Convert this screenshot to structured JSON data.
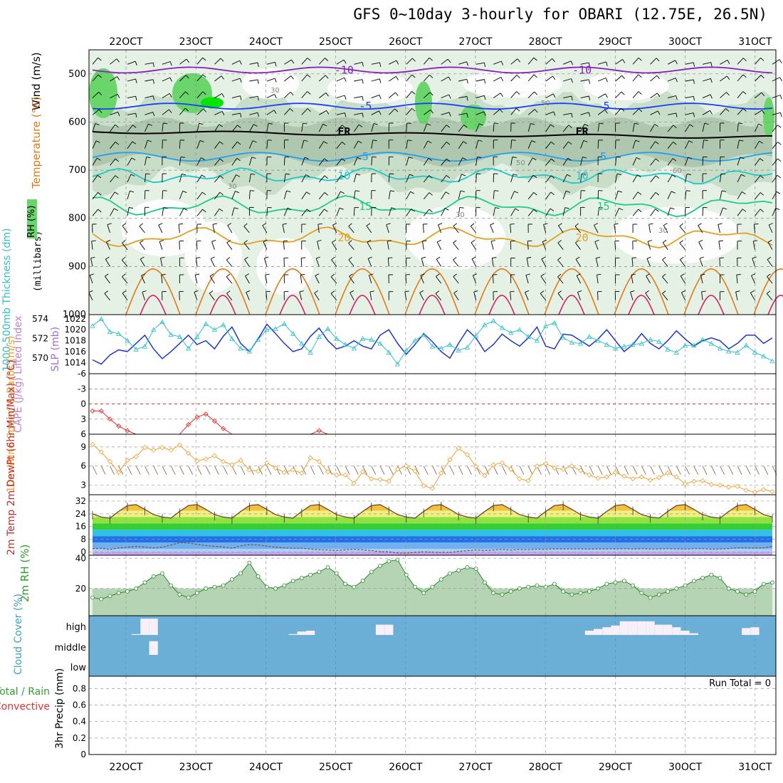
{
  "title": "GFS 0~10day 3-hourly for OBARI (12.75E, 26.5N)",
  "x_ticks": [
    "22OCT",
    "23OCT",
    "24OCT",
    "25OCT",
    "26OCT",
    "27OCT",
    "28OCT",
    "29OCT",
    "30OCT",
    "31OCT"
  ],
  "run_total": "Run Total = 0",
  "colors": {
    "rh_light": "#e6f1e6",
    "rh_mid": "#c4dcc4",
    "rh_dark": "#a9c3a9",
    "rh_green": "#6ad56a",
    "rh_bright": "#00e600",
    "purple": "#8a1fbe",
    "blue": "#1a3cff",
    "sky": "#1fa0f0",
    "teal": "#1ec8c8",
    "seagreen": "#1ecb8a",
    "orange": "#e0a020",
    "darkorange": "#e07a18",
    "magenta": "#d4206a",
    "slp": "#2038c8",
    "thick": "#30c0c8",
    "li": "#e03030",
    "wind10": "#f0a030",
    "cloud": "#6baed6",
    "cloud_white": "#f8f0f8"
  },
  "chart_data": [
    {
      "id": "cross_section",
      "type": "heatmap",
      "ylabel_lines": [
        "Wind (m/s)",
        "Temperature (°C)",
        "RH (%)"
      ],
      "yaxis_label": "(millibars)",
      "y_ticks": [
        "500",
        "600",
        "700",
        "800",
        "900",
        "1000"
      ],
      "ylim": [
        450,
        1000
      ],
      "isotherms": [
        {
          "label": "-10",
          "pressure": 492
        },
        {
          "label": "-5",
          "pressure": 567
        },
        {
          "label": "FR",
          "pressure": 620
        },
        {
          "label": "5",
          "pressure": 672
        },
        {
          "label": "10",
          "pressure": 712
        },
        {
          "label": "15",
          "pressure": 775
        },
        {
          "label": "20",
          "pressure": 840
        }
      ],
      "rh_labels": [
        "30",
        "50",
        "60"
      ]
    },
    {
      "id": "slp_thickness",
      "type": "line",
      "ylabel_left": "1000-500mb Thickness (dm)",
      "ylabel_right": "SLP (mb)",
      "y_ticks_left": [
        "570",
        "572",
        "574"
      ],
      "y_ticks_right": [
        "1014",
        "1016",
        "1018",
        "1020",
        "1022"
      ],
      "series": [
        {
          "name": "SLP (mb)",
          "values": [
            1014.5,
            1013.7,
            1015.4,
            1016.3,
            1016.0,
            1017.5,
            1019.0,
            1016.5,
            1014.7,
            1016.0,
            1017.5,
            1019.0,
            1017.3,
            1018.0,
            1016.5,
            1018.8,
            1020.5,
            1017.5,
            1016.0,
            1018.3,
            1021.0,
            1019.3,
            1017.5,
            1016.0,
            1016.5,
            1018.8,
            1020.3,
            1018.0,
            1016.5,
            1017.0,
            1018.0,
            1017.0,
            1016.5,
            1019.0,
            1020.0,
            1017.5,
            1015.5,
            1017.3,
            1019.3,
            1017.8,
            1016.0,
            1014.8,
            1017.5,
            1020.0,
            1018.5,
            1016.0,
            1017.3,
            1019.2,
            1018.0,
            1017.0,
            1018.5,
            1020.5,
            1017.0,
            1016.5,
            1019.2,
            1019.0,
            1018.0,
            1017.0,
            1018.3,
            1020.0,
            1018.0,
            1016.0,
            1017.3,
            1019.3,
            1017.5,
            1016.5,
            1018.0,
            1019.8,
            1018.3,
            1017.0,
            1018.0,
            1018.5,
            1018.0,
            1016.5,
            1017.5,
            1019.0,
            1019.0,
            1017.5,
            1018.5
          ]
        },
        {
          "name": "Thickness (dm)",
          "values": [
            573.3,
            574.0,
            572.7,
            572.5,
            571.8,
            570.9,
            571.2,
            572.9,
            573.7,
            572.4,
            572.2,
            571.0,
            572.2,
            573.5,
            572.9,
            573.4,
            572.0,
            571.0,
            570.7,
            571.9,
            572.9,
            573.0,
            573.5,
            572.5,
            571.5,
            570.6,
            572.2,
            573.0,
            572.0,
            571.4,
            571.0,
            572.0,
            571.9,
            571.5,
            570.6,
            569.4,
            570.8,
            571.8,
            572.4,
            571.2,
            571.0,
            571.4,
            570.8,
            571.1,
            572.3,
            573.4,
            573.8,
            573.1,
            572.6,
            572.9,
            572.2,
            571.8,
            573.3,
            573.6,
            572.1,
            571.6,
            571.5,
            572.2,
            571.8,
            571.4,
            571.0,
            571.2,
            571.4,
            571.5,
            571.9,
            571.7,
            570.9,
            570.6,
            571.3,
            571.3,
            571.9,
            571.5,
            571.0,
            570.7,
            570.6,
            571.3,
            570.6,
            570.2,
            569.7
          ]
        }
      ]
    },
    {
      "id": "cape_li",
      "type": "line",
      "ylabel": "CAPE (J/kg) Lifted Index",
      "y_ticks": [
        "-6",
        "-3",
        "0",
        "3",
        "6"
      ],
      "ylim": [
        -6,
        6
      ],
      "series": [
        {
          "name": "Lifted Index",
          "values": [
            1.4,
            1.4,
            3.0,
            4.4,
            5.3,
            6.0,
            6.0,
            6.0,
            6.0,
            6.0,
            6.0,
            4.1,
            2.6,
            2.0,
            3.4,
            4.9,
            6.0,
            6.0,
            6.0,
            6.0,
            6.0,
            6.0,
            6.0,
            6.0,
            6.0,
            6.0,
            5.3,
            6.0,
            6.0,
            6.0,
            6.0,
            6.0,
            6.0,
            6.0,
            6.0,
            6.0,
            6.0,
            6.0,
            6.0,
            6.0,
            6.0,
            6.0,
            6.0,
            6.0,
            6.0,
            6.0,
            6.0,
            6.0,
            6.0,
            6.0,
            6.0,
            6.0,
            6.0,
            6.0,
            6.0,
            6.0,
            6.0,
            6.0,
            6.0,
            6.0,
            6.0,
            6.0,
            6.0,
            6.0,
            6.0,
            6.0,
            6.0,
            6.0,
            6.0,
            6.0,
            6.0,
            6.0,
            6.0,
            6.0,
            6.0,
            6.0,
            6.0,
            6.0,
            6.0
          ]
        }
      ]
    },
    {
      "id": "wind10m",
      "type": "line",
      "ylabel": "10m Wind Speed & Barbs (m/s)",
      "y_ticks": [
        "3",
        "6",
        "9"
      ],
      "ylim": [
        1.5,
        11
      ],
      "series": [
        {
          "name": "Speed (m/s)",
          "values": [
            9.4,
            8.2,
            6.7,
            5.0,
            6.9,
            7.5,
            8.9,
            8.5,
            8.9,
            8.5,
            9.3,
            8.0,
            6.8,
            7.1,
            7.6,
            6.7,
            6.2,
            6.9,
            5.4,
            5.2,
            6.5,
            5.7,
            5.0,
            5.4,
            4.9,
            7.3,
            6.7,
            5.1,
            4.6,
            4.6,
            3.3,
            5.1,
            4.0,
            3.9,
            3.6,
            5.5,
            6.0,
            5.2,
            2.9,
            2.5,
            4.9,
            7.0,
            8.8,
            7.8,
            5.9,
            4.5,
            6.2,
            6.5,
            5.5,
            4.0,
            3.7,
            6.0,
            6.4,
            5.7,
            5.5,
            6.0,
            5.3,
            4.6,
            4.1,
            4.3,
            5.0,
            4.4,
            4.0,
            4.3,
            3.8,
            4.2,
            4.9,
            4.3,
            3.2,
            3.6,
            3.7,
            3.1,
            3.0,
            2.7,
            2.8,
            2.2,
            1.9,
            2.3,
            2.0
          ]
        }
      ]
    },
    {
      "id": "temp2m",
      "type": "area",
      "ylabel": "2m Temp 2m DewPt (6hr Min/Max) (°C)",
      "y_ticks": [
        "0",
        "8",
        "16",
        "24",
        "32"
      ],
      "ylim": [
        -2,
        36
      ],
      "series": [
        {
          "name": "2m Temp (°C)",
          "values": [
            24.0,
            22.0,
            21.3,
            25.5,
            29.2,
            29.8,
            26.8,
            23.5,
            22.0,
            21.3,
            25.5,
            29.2,
            29.8,
            26.8,
            23.5,
            22.0,
            21.3,
            25.5,
            29.2,
            29.8,
            26.8,
            23.5,
            22.0,
            21.3,
            25.5,
            29.2,
            29.8,
            26.8,
            23.5,
            22.0,
            21.3,
            25.5,
            29.2,
            29.8,
            26.8,
            23.5,
            22.0,
            21.3,
            25.5,
            29.2,
            29.8,
            26.8,
            23.5,
            22.0,
            21.3,
            25.5,
            29.2,
            29.8,
            26.8,
            23.5,
            22.0,
            21.3,
            25.5,
            29.2,
            29.8,
            26.8,
            23.5,
            22.0,
            21.3,
            25.5,
            29.2,
            29.8,
            26.8,
            23.5,
            22.0,
            21.3,
            25.5,
            29.2,
            29.8,
            26.8,
            23.5,
            22.0,
            21.3,
            25.5,
            29.2,
            29.8,
            26.8,
            23.5,
            22.0
          ]
        },
        {
          "name": "2m DewPt (°C)",
          "values": [
            2.2,
            2.3,
            1.6,
            2.5,
            3.0,
            3.4,
            3.1,
            2.6,
            3.0,
            4.4,
            5.9,
            5.6,
            4.8,
            4.1,
            3.6,
            3.2,
            2.4,
            3.9,
            4.7,
            4.5,
            3.7,
            3.1,
            2.6,
            2.4,
            2.4,
            1.9,
            1.5,
            1.3,
            1.0,
            1.4,
            1.7,
            1.4,
            0.9,
            0.2,
            0.1,
            -0.6,
            -0.7,
            -0.2,
            0.1,
            -0.1,
            -0.3,
            -0.3,
            0.4,
            0.8,
            1.3,
            1.0,
            1.3,
            1.6,
            1.2,
            1.6,
            1.5,
            1.8,
            1.7,
            2.0,
            2.0,
            1.9,
            2.0,
            1.8,
            2.0,
            2.0,
            2.0,
            2.1,
            1.9,
            2.1,
            1.9,
            2.0,
            2.1,
            2.0,
            1.9,
            2.1,
            2.1,
            1.8,
            1.9,
            2.2,
            2.6,
            2.6,
            2.5,
            2.6,
            3.6
          ]
        }
      ]
    },
    {
      "id": "rh2m",
      "type": "area",
      "ylabel": "2m RH (%)",
      "y_ticks": [
        "20",
        "40"
      ],
      "ylim": [
        2,
        42
      ],
      "series": [
        {
          "name": "2m RH (%)",
          "values": [
            14,
            13,
            15,
            17,
            18,
            20,
            24,
            28,
            30,
            22,
            16,
            14,
            17,
            20,
            21,
            22,
            26,
            30,
            37,
            28,
            21,
            20,
            22,
            25,
            27,
            29,
            31,
            34,
            30,
            23,
            21,
            25,
            31,
            35,
            38,
            39,
            29,
            21,
            17,
            21,
            26,
            30,
            32,
            34,
            33,
            24,
            17,
            16,
            18,
            20,
            21,
            22,
            21,
            23,
            18,
            16,
            17,
            18,
            20,
            23,
            24,
            25,
            22,
            17,
            14,
            16,
            18,
            20,
            22,
            25,
            27,
            29,
            27,
            20,
            18,
            16,
            18,
            23,
            24,
            26,
            28,
            29
          ]
        }
      ]
    },
    {
      "id": "cloud",
      "type": "bar",
      "ylabel": "Cloud Cover (%)",
      "y_ticks": [
        "low",
        "middle",
        "high"
      ],
      "series": [
        {
          "name": "high",
          "values": [
            0,
            0,
            0,
            0,
            0,
            5,
            95,
            95,
            0,
            0,
            0,
            0,
            0,
            0,
            0,
            0,
            0,
            0,
            0,
            0,
            0,
            0,
            0,
            5,
            20,
            25,
            0,
            0,
            0,
            0,
            0,
            0,
            0,
            60,
            60,
            0,
            0,
            0,
            0,
            0,
            0,
            0,
            0,
            0,
            0,
            0,
            0,
            0,
            0,
            0,
            0,
            0,
            0,
            0,
            0,
            0,
            0,
            25,
            35,
            45,
            55,
            80,
            80,
            80,
            80,
            60,
            60,
            45,
            25,
            10,
            0,
            0,
            0,
            0,
            0,
            40,
            45,
            0,
            0,
            15,
            30,
            40,
            30,
            20,
            30,
            30,
            15,
            0,
            0
          ]
        },
        {
          "name": "middle",
          "values": [
            0,
            0,
            0,
            0,
            0,
            0,
            0,
            80,
            0,
            0,
            0,
            0,
            0,
            0,
            0,
            0,
            0,
            0,
            0,
            0,
            0,
            0,
            0,
            0,
            0,
            0,
            0,
            0,
            0,
            0,
            0,
            0,
            0,
            0,
            0,
            0,
            0,
            0,
            0,
            0,
            0,
            0,
            0,
            0,
            0,
            0,
            0,
            0,
            0,
            0,
            0,
            0,
            0,
            0,
            0,
            0,
            0,
            0,
            0,
            0,
            0,
            0,
            0,
            0,
            0,
            0,
            0,
            0,
            0,
            0,
            0,
            0,
            0,
            0,
            0,
            0,
            0,
            0,
            0
          ]
        },
        {
          "name": "low",
          "values": [
            0,
            0,
            0,
            0,
            0,
            0,
            0,
            0,
            0,
            0,
            0,
            0,
            0,
            0,
            0,
            0,
            0,
            0,
            0,
            0,
            0,
            0,
            0,
            0,
            0,
            0,
            0,
            0,
            0,
            0,
            0,
            0,
            0,
            0,
            0,
            0,
            0,
            0,
            0,
            0,
            0,
            0,
            0,
            0,
            0,
            0,
            0,
            0,
            0,
            0,
            0,
            0,
            0,
            0,
            0,
            0,
            0,
            0,
            0,
            0,
            0,
            0,
            0,
            0,
            0,
            0,
            0,
            0,
            0,
            0,
            0,
            0,
            0,
            0,
            0,
            0,
            0,
            0,
            0
          ]
        }
      ]
    },
    {
      "id": "precip",
      "type": "bar",
      "ylabel_lines": [
        "Total / Rain",
        "Convective"
      ],
      "yaxis_label": "3hr Precip (mm)",
      "y_ticks": [
        "0",
        "0.2",
        "0.4",
        "0.6",
        "0.8"
      ],
      "ylim": [
        0,
        0.95
      ],
      "series": [
        {
          "name": "Total / Rain",
          "values": []
        },
        {
          "name": "Convective",
          "values": []
        }
      ]
    }
  ]
}
